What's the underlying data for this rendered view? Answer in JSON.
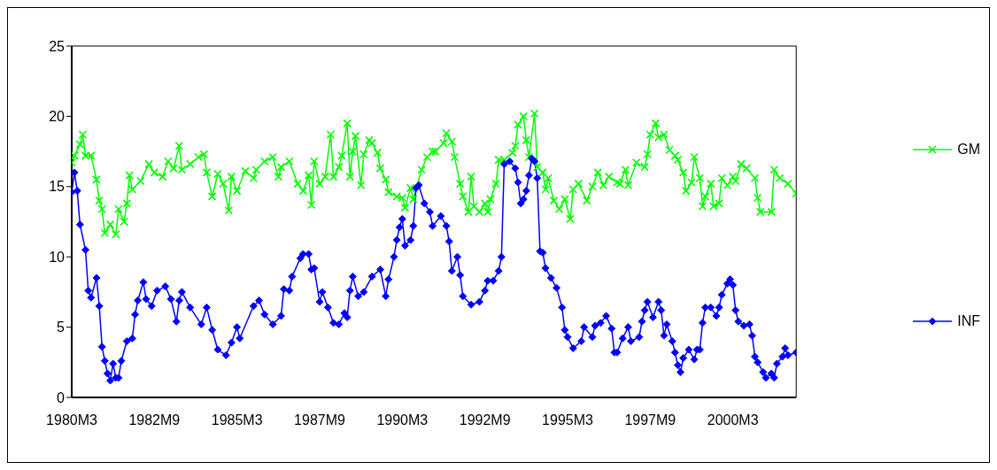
{
  "chart_data": {
    "type": "line",
    "xlim": [
      "1980-03",
      "2002-02"
    ],
    "xticks": [
      {
        "value": "1980-03",
        "label": "1980M3"
      },
      {
        "value": "1982-09",
        "label": "1982M9"
      },
      {
        "value": "1985-03",
        "label": "1985M3"
      },
      {
        "value": "1987-09",
        "label": "1987M9"
      },
      {
        "value": "1990-03",
        "label": "1990M3"
      },
      {
        "value": "1992-09",
        "label": "1992M9"
      },
      {
        "value": "1995-03",
        "label": "1995M3"
      },
      {
        "value": "1997-09",
        "label": "1997M9"
      },
      {
        "value": "2000-03",
        "label": "2000M3"
      }
    ],
    "ylim": [
      0,
      25
    ],
    "yticks": [
      0,
      5,
      10,
      15,
      20,
      25
    ],
    "legend": "right",
    "line_style": "solid",
    "series": [
      {
        "name": "GM",
        "color": "#00ff00",
        "marker": "cross",
        "x": [
          "1980-03",
          "1980-04",
          "1980-06",
          "1980-07",
          "1980-08",
          "1980-10",
          "1980-12",
          "1981-01",
          "1981-02",
          "1981-03",
          "1981-05",
          "1981-07",
          "1981-08",
          "1981-10",
          "1981-11",
          "1981-12",
          "1982-01",
          "1982-04",
          "1982-07",
          "1982-09",
          "1982-12",
          "1983-02",
          "1983-04",
          "1983-06",
          "1983-07",
          "1983-10",
          "1984-01",
          "1984-03",
          "1984-04",
          "1984-06",
          "1984-08",
          "1984-10",
          "1984-12",
          "1985-01",
          "1985-03",
          "1985-06",
          "1985-09",
          "1985-10",
          "1986-01",
          "1986-04",
          "1986-06",
          "1986-07",
          "1986-10",
          "1987-01",
          "1987-03",
          "1987-05",
          "1987-06",
          "1987-07",
          "1987-09",
          "1987-11",
          "1988-01",
          "1988-02",
          "1988-04",
          "1988-05",
          "1988-07",
          "1988-08",
          "1988-09",
          "1988-10",
          "1988-12",
          "1989-01",
          "1989-03",
          "1989-04",
          "1989-06",
          "1989-07",
          "1989-09",
          "1989-10",
          "1990-01",
          "1990-03",
          "1990-04",
          "1990-06",
          "1990-07",
          "1990-10",
          "1990-12",
          "1991-02",
          "1991-03",
          "1991-06",
          "1991-07",
          "1991-09",
          "1991-10",
          "1991-12",
          "1992-01",
          "1992-03",
          "1992-04",
          "1992-05",
          "1992-07",
          "1992-09",
          "1992-10",
          "1992-11",
          "1993-01",
          "1993-02",
          "1993-04",
          "1993-07",
          "1993-08",
          "1993-09",
          "1993-11",
          "1993-12",
          "1994-01",
          "1994-03",
          "1994-04",
          "1994-06",
          "1994-07",
          "1994-08",
          "1994-10",
          "1994-12",
          "1995-02",
          "1995-04",
          "1995-05",
          "1995-07",
          "1995-10",
          "1995-12",
          "1996-02",
          "1996-04",
          "1996-06",
          "1996-09",
          "1996-10",
          "1996-12",
          "1997-01",
          "1997-04",
          "1997-07",
          "1997-08",
          "1997-09",
          "1997-11",
          "1997-12",
          "1998-02",
          "1998-04",
          "1998-06",
          "1998-07",
          "1998-09",
          "1998-10",
          "1998-12",
          "1999-01",
          "1999-03",
          "1999-04",
          "1999-05",
          "1999-07",
          "1999-08",
          "1999-10",
          "1999-11",
          "2000-01",
          "2000-03",
          "2000-04",
          "2000-06",
          "2000-08",
          "2000-11",
          "2000-12",
          "2001-01",
          "2001-05",
          "2001-06",
          "2001-08",
          "2001-11",
          "2002-02"
        ],
        "values": [
          16.7,
          17.2,
          18.0,
          18.7,
          17.2,
          17.2,
          15.5,
          14.0,
          13.4,
          11.7,
          12.3,
          11.6,
          13.4,
          12.5,
          13.8,
          15.8,
          14.8,
          15.4,
          16.6,
          16.0,
          15.7,
          16.8,
          16.3,
          17.9,
          16.2,
          16.6,
          17.1,
          17.3,
          16.0,
          14.3,
          15.9,
          15.2,
          13.3,
          15.7,
          14.7,
          16.1,
          15.6,
          16.2,
          16.8,
          17.1,
          15.7,
          16.4,
          16.8,
          15.2,
          14.7,
          15.8,
          13.7,
          16.8,
          15.2,
          15.7,
          18.7,
          15.7,
          16.4,
          17.2,
          19.5,
          15.7,
          17.5,
          18.6,
          15.1,
          17.3,
          18.3,
          18.1,
          17.4,
          16.3,
          15.5,
          14.6,
          14.3,
          14.2,
          13.5,
          14.9,
          14.1,
          16.2,
          17.1,
          17.5,
          17.5,
          18.1,
          18.8,
          18.2,
          17.1,
          15.2,
          14.3,
          13.2,
          15.7,
          13.6,
          13.2,
          13.8,
          13.2,
          14.1,
          15.2,
          16.9,
          16.9,
          17.4,
          17.9,
          19.4,
          20.0,
          18.3,
          17.1,
          20.2,
          16.4,
          16.0,
          14.8,
          15.6,
          14.0,
          13.4,
          14.1,
          12.7,
          14.8,
          15.2,
          14.0,
          15.0,
          16.0,
          15.1,
          15.7,
          15.3,
          15.2,
          16.2,
          15.1,
          16.7,
          16.4,
          17.3,
          18.7,
          19.5,
          18.5,
          18.7,
          17.6,
          17.2,
          16.9,
          16.0,
          14.7,
          15.3,
          17.1,
          15.6,
          13.6,
          14.3,
          15.2,
          13.6,
          13.8,
          15.6,
          15.1,
          15.7,
          15.4,
          16.6,
          16.3,
          15.6,
          14.2,
          13.2,
          13.2,
          16.2,
          15.6,
          15.2,
          14.5
        ]
      },
      {
        "name": "INF",
        "color": "#0000ff",
        "marker": "diamond",
        "x": [
          "1980-03",
          "1980-04",
          "1980-05",
          "1980-06",
          "1980-08",
          "1980-09",
          "1980-10",
          "1980-12",
          "1981-01",
          "1981-02",
          "1981-03",
          "1981-04",
          "1981-05",
          "1981-06",
          "1981-07",
          "1981-08",
          "1981-09",
          "1981-11",
          "1982-01",
          "1982-02",
          "1982-03",
          "1982-05",
          "1982-06",
          "1982-08",
          "1982-10",
          "1983-01",
          "1983-03",
          "1983-05",
          "1983-06",
          "1983-07",
          "1983-10",
          "1984-02",
          "1984-04",
          "1984-06",
          "1984-08",
          "1984-11",
          "1985-01",
          "1985-03",
          "1985-04",
          "1985-09",
          "1985-11",
          "1986-01",
          "1986-04",
          "1986-07",
          "1986-08",
          "1986-10",
          "1986-11",
          "1987-02",
          "1987-03",
          "1987-05",
          "1987-06",
          "1987-07",
          "1987-09",
          "1987-10",
          "1987-12",
          "1988-02",
          "1988-04",
          "1988-06",
          "1988-07",
          "1988-08",
          "1988-09",
          "1988-11",
          "1989-01",
          "1989-04",
          "1989-07",
          "1989-09",
          "1989-10",
          "1989-12",
          "1990-01",
          "1990-02",
          "1990-03",
          "1990-04",
          "1990-06",
          "1990-07",
          "1990-08",
          "1990-09",
          "1990-11",
          "1991-01",
          "1991-02",
          "1991-05",
          "1991-07",
          "1991-08",
          "1991-09",
          "1991-11",
          "1991-12",
          "1992-01",
          "1992-04",
          "1992-07",
          "1992-09",
          "1992-10",
          "1992-12",
          "1993-02",
          "1993-03",
          "1993-04",
          "1993-06",
          "1993-08",
          "1993-09",
          "1993-10",
          "1993-11",
          "1993-12",
          "1994-01",
          "1994-02",
          "1994-03",
          "1994-04",
          "1994-05",
          "1994-06",
          "1994-07",
          "1994-09",
          "1994-11",
          "1995-01",
          "1995-02",
          "1995-03",
          "1995-05",
          "1995-08",
          "1995-09",
          "1995-12",
          "1996-01",
          "1996-03",
          "1996-05",
          "1996-07",
          "1996-08",
          "1996-09",
          "1996-11",
          "1997-01",
          "1997-02",
          "1997-05",
          "1997-06",
          "1997-07",
          "1997-08",
          "1997-10",
          "1997-12",
          "1998-01",
          "1998-02",
          "1998-03",
          "1998-05",
          "1998-06",
          "1998-07",
          "1998-08",
          "1998-09",
          "1998-11",
          "1999-01",
          "1999-02",
          "1999-03",
          "1999-04",
          "1999-05",
          "1999-07",
          "1999-09",
          "1999-10",
          "1999-11",
          "2000-01",
          "2000-02",
          "2000-03",
          "2000-04",
          "2000-05",
          "2000-07",
          "2000-09",
          "2000-10",
          "2000-11",
          "2000-12",
          "2001-02",
          "2001-03",
          "2001-05",
          "2001-06",
          "2001-07",
          "2001-09",
          "2001-10",
          "2001-11",
          "2002-02"
        ],
        "values": [
          14.6,
          16.0,
          14.7,
          12.3,
          10.5,
          7.6,
          7.1,
          8.5,
          6.5,
          3.6,
          2.6,
          1.7,
          1.2,
          2.4,
          1.4,
          1.4,
          2.6,
          4.0,
          4.2,
          5.9,
          6.9,
          8.2,
          7.0,
          6.5,
          7.6,
          7.9,
          7.0,
          5.4,
          6.9,
          7.5,
          6.4,
          5.2,
          6.4,
          4.8,
          3.4,
          3.0,
          3.9,
          5.0,
          4.2,
          6.5,
          6.9,
          5.9,
          5.2,
          5.8,
          7.7,
          7.6,
          8.6,
          9.9,
          10.2,
          10.2,
          9.1,
          9.2,
          6.8,
          7.5,
          6.4,
          5.3,
          5.2,
          6.0,
          5.7,
          7.6,
          8.6,
          7.2,
          7.5,
          8.6,
          9.1,
          7.2,
          8.4,
          10.0,
          11.2,
          12.1,
          12.7,
          10.8,
          11.2,
          12.2,
          14.9,
          15.1,
          13.8,
          13.2,
          12.2,
          12.9,
          12.2,
          11.1,
          9.0,
          10.0,
          8.7,
          7.2,
          6.6,
          6.8,
          7.6,
          8.3,
          8.3,
          9.0,
          10.0,
          16.6,
          16.8,
          16.3,
          15.3,
          13.8,
          14.1,
          14.7,
          15.8,
          17.0,
          16.8,
          15.6,
          10.4,
          10.3,
          9.2,
          8.5,
          7.8,
          6.4,
          4.8,
          4.3,
          3.5,
          4.0,
          5.0,
          4.3,
          5.1,
          5.3,
          5.8,
          4.9,
          3.2,
          3.2,
          4.2,
          5.0,
          4.0,
          4.3,
          5.4,
          6.2,
          6.8,
          5.7,
          6.8,
          6.2,
          4.4,
          5.2,
          4.0,
          3.2,
          2.3,
          1.8,
          2.8,
          3.4,
          2.7,
          3.4,
          3.4,
          5.3,
          6.4,
          6.4,
          5.8,
          6.4,
          7.3,
          8.1,
          8.4,
          8.0,
          6.2,
          5.4,
          5.1,
          5.2,
          4.4,
          2.9,
          2.5,
          1.8,
          1.4,
          1.7,
          1.4,
          2.4,
          2.9,
          3.5,
          3.0,
          3.2
        ]
      }
    ]
  }
}
